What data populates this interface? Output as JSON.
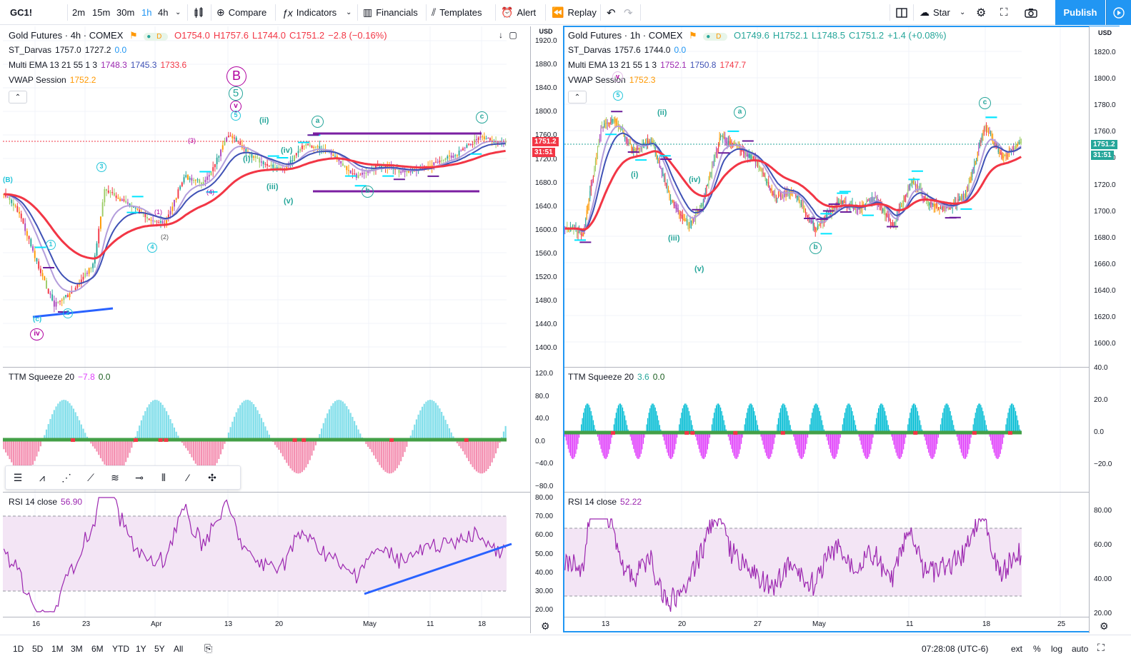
{
  "toolbar": {
    "symbol": "GC1!",
    "intervals": [
      "2m",
      "15m",
      "30m",
      "1h",
      "4h"
    ],
    "compare": "Compare",
    "indicators": "Indicators",
    "financials": "Financials",
    "templates": "Templates",
    "alert": "Alert",
    "replay": "Replay",
    "star": "Star",
    "publish": "Publish"
  },
  "left": {
    "title": "Gold Futures · 4h · COMEX",
    "ohlc": {
      "o": "O1754.0",
      "h": "H1757.6",
      "l": "L1744.0",
      "c": "C1751.2",
      "chg": "−2.8 (−0.16%)"
    },
    "ind1": {
      "name": "ST_Darvas",
      "v1": "1757.0",
      "v2": "1727.2",
      "v3": "0.0"
    },
    "ind2": {
      "name": "Multi EMA 13 21 55 1 3",
      "v1": "1748.3",
      "v2": "1745.3",
      "v3": "1733.6"
    },
    "ind3": {
      "name": "VWAP Session",
      "v1": "1752.2"
    },
    "axis_label": "USD",
    "price_ticks": [
      "1920.0",
      "1880.0",
      "1840.0",
      "1800.0",
      "1760.0",
      "1720.0",
      "1680.0",
      "1640.0",
      "1600.0",
      "1560.0",
      "1520.0",
      "1480.0",
      "1440.0",
      "1400.0"
    ],
    "last_price": "1751.2",
    "countdown": "31:51",
    "squeeze": {
      "name": "TTM Squeeze 20",
      "v1": "−7.8",
      "v2": "0.0",
      "ticks": [
        "120.0",
        "80.0",
        "40.0",
        "0.0",
        "−40.0",
        "−80.0"
      ]
    },
    "rsi": {
      "name": "RSI 14 close",
      "v1": "56.90",
      "ticks": [
        "80.00",
        "70.00",
        "60.00",
        "50.00",
        "40.00",
        "30.00",
        "20.00"
      ]
    },
    "dates": [
      "16",
      "23",
      "Apr",
      "13",
      "20",
      "May",
      "11",
      "18"
    ]
  },
  "right": {
    "title": "Gold Futures · 1h · COMEX",
    "ohlc": {
      "o": "O1749.6",
      "h": "H1752.1",
      "l": "L1748.5",
      "c": "C1751.2",
      "chg": "+1.4 (+0.08%)"
    },
    "ind1": {
      "name": "ST_Darvas",
      "v1": "1757.6",
      "v2": "1744.0",
      "v3": "0.0"
    },
    "ind2": {
      "name": "Multi EMA 13 21 55 1 3",
      "v1": "1752.1",
      "v2": "1750.8",
      "v3": "1747.7"
    },
    "ind3": {
      "name": "VWAP Session",
      "v1": "1752.3"
    },
    "axis_label": "USD",
    "price_ticks": [
      "1820.0",
      "1800.0",
      "1780.0",
      "1760.0",
      "1740.0",
      "1720.0",
      "1700.0",
      "1680.0",
      "1660.0",
      "1640.0",
      "1620.0",
      "1600.0"
    ],
    "last_price": "1751.2",
    "countdown": "31:51",
    "squeeze": {
      "name": "TTM Squeeze 20",
      "v1": "3.6",
      "v2": "0.0",
      "ticks": [
        "40.0",
        "20.0",
        "0.0",
        "−20.0"
      ]
    },
    "rsi": {
      "name": "RSI 14 close",
      "v1": "52.22",
      "ticks": [
        "80.00",
        "60.00",
        "40.00",
        "20.00"
      ]
    },
    "dates": [
      "13",
      "20",
      "27",
      "May",
      "11",
      "18",
      "25"
    ]
  },
  "wave_labels": {
    "B": "B",
    "five": "5",
    "v": "v",
    "ii": "(ii)",
    "i": "(i)",
    "iii": "(iii)",
    "iv": "(iv)",
    "vv": "(v)",
    "a": "a",
    "b": "b",
    "c": "c",
    "three": "3",
    "four": "4",
    "one": "1",
    "two": "2",
    "iv_small": "iv",
    "paren_c": "(c)",
    "paren_b": "(B)",
    "paren3": "(3)",
    "paren4": "(4)",
    "paren1": "(1)",
    "paren2": "(2)"
  },
  "bottom": {
    "ranges": [
      "1D",
      "5D",
      "1M",
      "3M",
      "6M",
      "YTD",
      "1Y",
      "5Y",
      "All"
    ],
    "time": "07:28:08 (UTC-6)",
    "ext": "ext",
    "pct": "%",
    "log": "log",
    "auto": "auto"
  },
  "colors": {
    "accent": "#2196f3",
    "ema13": "#ff9800",
    "ema21": "#3f51b5",
    "ema55": "#f23645",
    "rsi": "#9c27b0",
    "teal": "#26c6da",
    "magenta": "#e040fb"
  }
}
